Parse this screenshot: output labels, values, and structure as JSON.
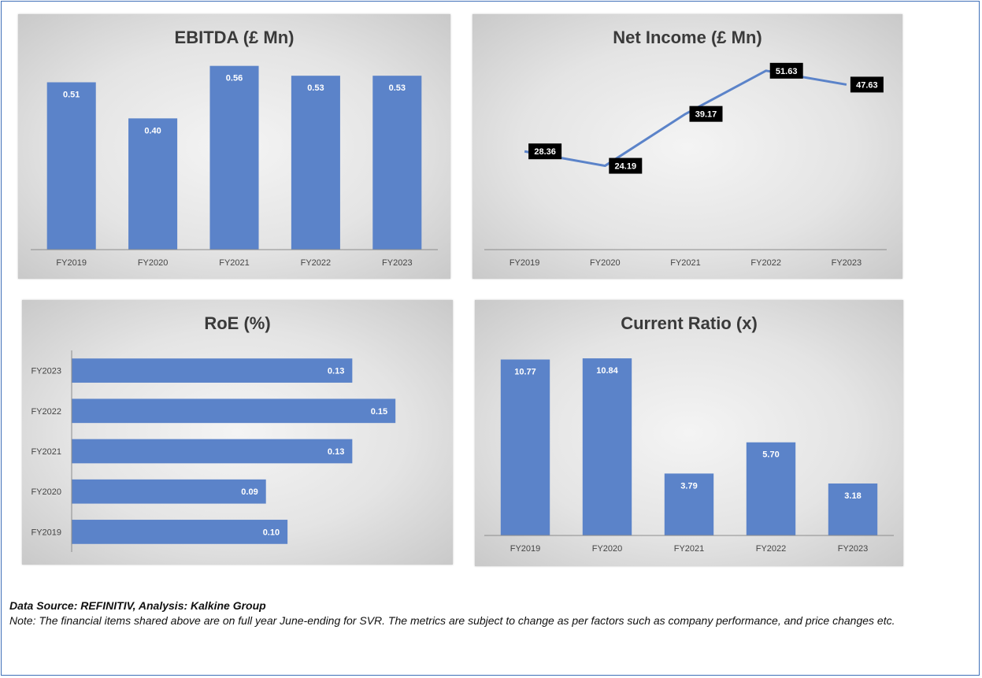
{
  "chart_data": [
    {
      "type": "bar",
      "title": "EBITDA (£ Mn)",
      "categories": [
        "FY2019",
        "FY2020",
        "FY2021",
        "FY2022",
        "FY2023"
      ],
      "values": [
        0.51,
        0.4,
        0.56,
        0.53,
        0.53
      ],
      "value_labels": [
        "0.51",
        "0.40",
        "0.56",
        "0.53",
        "0.53"
      ],
      "ylim": [
        0,
        0.6
      ],
      "grid": false,
      "color": "#5b83c9"
    },
    {
      "type": "line",
      "title": "Net Income (£ Mn)",
      "categories": [
        "FY2019",
        "FY2020",
        "FY2021",
        "FY2022",
        "FY2023"
      ],
      "values": [
        28.36,
        24.19,
        39.17,
        51.63,
        47.63
      ],
      "value_labels": [
        "28.36",
        "24.19",
        "39.17",
        "51.63",
        "47.63"
      ],
      "ylim": [
        0,
        60
      ],
      "grid": false,
      "color": "#5b83c9"
    },
    {
      "type": "bar",
      "orientation": "horizontal",
      "title": "RoE (%)",
      "categories": [
        "FY2023",
        "FY2022",
        "FY2021",
        "FY2020",
        "FY2019"
      ],
      "values": [
        0.13,
        0.15,
        0.13,
        0.09,
        0.1
      ],
      "value_labels": [
        "0.13",
        "0.15",
        "0.13",
        "0.09",
        "0.10"
      ],
      "xlim": [
        0,
        0.17
      ],
      "grid": false,
      "color": "#5b83c9"
    },
    {
      "type": "bar",
      "title": "Current Ratio (x)",
      "categories": [
        "FY2019",
        "FY2020",
        "FY2021",
        "FY2022",
        "FY2023"
      ],
      "values": [
        10.77,
        10.84,
        3.79,
        5.7,
        3.18
      ],
      "value_labels": [
        "10.77",
        "10.84",
        "3.79",
        "5.70",
        "3.18"
      ],
      "ylim": [
        0,
        12
      ],
      "grid": false,
      "color": "#5b83c9"
    }
  ],
  "footer": {
    "source": "Data Source: REFINITIV, Analysis: Kalkine Group",
    "note": "Note: The financial items shared above are on full year June-ending for SVR. The metrics are subject to change as per factors such as company performance, and price changes etc."
  }
}
